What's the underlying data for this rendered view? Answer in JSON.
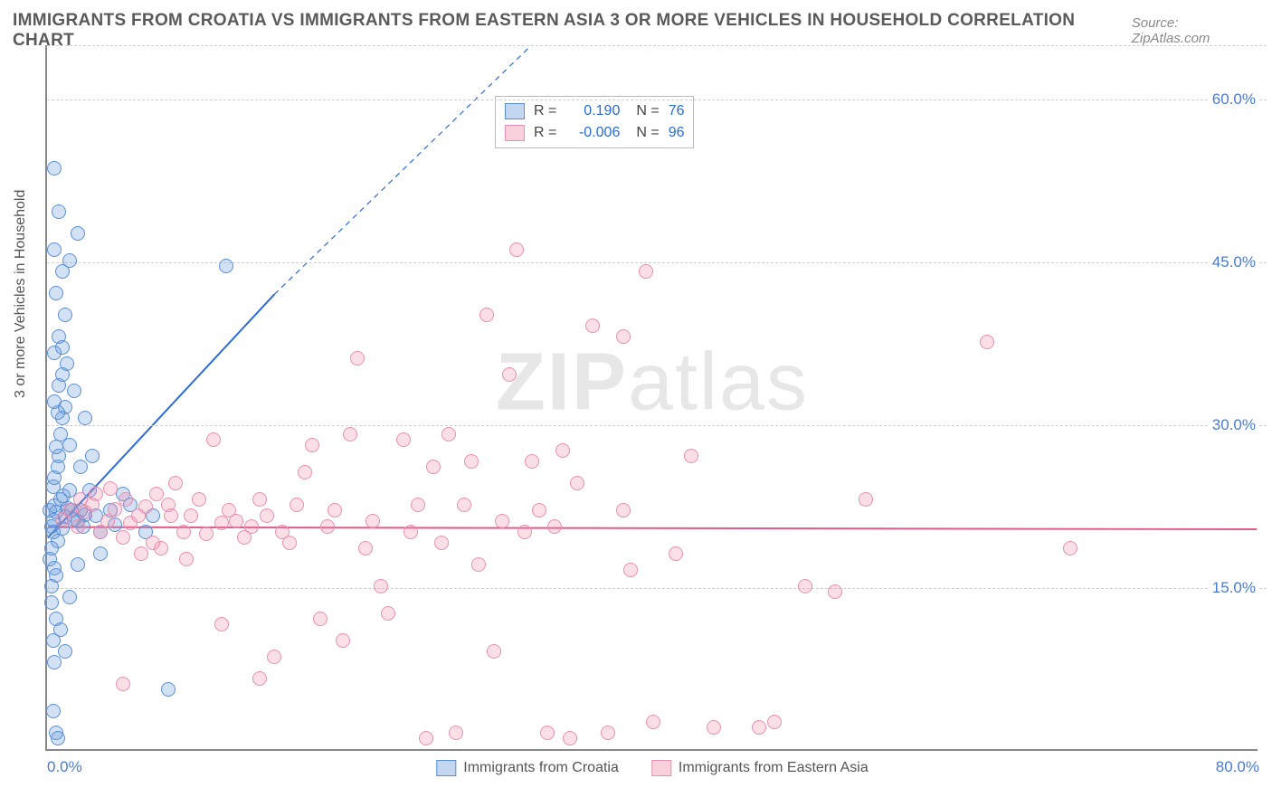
{
  "title": "IMMIGRANTS FROM CROATIA VS IMMIGRANTS FROM EASTERN ASIA 3 OR MORE VEHICLES IN HOUSEHOLD CORRELATION CHART",
  "source": "Source: ZipAtlas.com",
  "watermark_bold": "ZIP",
  "watermark_light": "atlas",
  "y_axis_title": "3 or more Vehicles in Household",
  "chart": {
    "type": "scatter",
    "xlim": [
      0,
      80
    ],
    "ylim": [
      0,
      65
    ],
    "xticks": [
      {
        "value": 0,
        "label": "0.0%"
      },
      {
        "value": 80,
        "label": "80.0%"
      }
    ],
    "yticks": [
      {
        "value": 15,
        "label": "15.0%"
      },
      {
        "value": 30,
        "label": "30.0%"
      },
      {
        "value": 45,
        "label": "45.0%"
      },
      {
        "value": 60,
        "label": "60.0%"
      }
    ],
    "grid_color": "#d8d8d8",
    "background_color": "#ffffff",
    "axis_color": "#888888",
    "marker_size": 16,
    "series": [
      {
        "name": "Immigrants from Croatia",
        "color_fill": "rgba(106,156,220,0.30)",
        "color_stroke": "#5a8fd6",
        "class": "blue",
        "R": "0.190",
        "N": "76",
        "trend": {
          "x1": 0,
          "y1": 19.5,
          "x2": 15,
          "y2": 42,
          "extend_dash_to_x": 32,
          "extend_dash_to_y": 65,
          "color": "#2a6bd8"
        },
        "points": [
          [
            0.3,
            20.5
          ],
          [
            0.4,
            21.1
          ],
          [
            0.2,
            22.0
          ],
          [
            0.5,
            22.4
          ],
          [
            0.6,
            21.8
          ],
          [
            0.4,
            20.0
          ],
          [
            0.7,
            19.2
          ],
          [
            0.3,
            18.5
          ],
          [
            0.2,
            17.5
          ],
          [
            0.5,
            16.7
          ],
          [
            0.6,
            16.0
          ],
          [
            0.3,
            15.0
          ],
          [
            0.9,
            23.0
          ],
          [
            1.1,
            23.3
          ],
          [
            1.4,
            22.2
          ],
          [
            1.2,
            21.4
          ],
          [
            1.0,
            20.3
          ],
          [
            1.5,
            23.8
          ],
          [
            1.6,
            22.0
          ],
          [
            1.8,
            21.2
          ],
          [
            2.0,
            21.0
          ],
          [
            2.2,
            22.0
          ],
          [
            2.5,
            21.6
          ],
          [
            2.4,
            20.5
          ],
          [
            0.4,
            24.2
          ],
          [
            0.5,
            25.0
          ],
          [
            0.7,
            26.0
          ],
          [
            0.8,
            27.0
          ],
          [
            0.6,
            27.8
          ],
          [
            0.9,
            29.0
          ],
          [
            1.0,
            30.5
          ],
          [
            1.2,
            31.5
          ],
          [
            0.5,
            32.0
          ],
          [
            0.8,
            33.5
          ],
          [
            1.0,
            34.5
          ],
          [
            1.3,
            35.5
          ],
          [
            0.5,
            36.5
          ],
          [
            0.8,
            38.0
          ],
          [
            1.2,
            40.0
          ],
          [
            0.6,
            42.0
          ],
          [
            1.0,
            44.0
          ],
          [
            1.5,
            45.0
          ],
          [
            0.5,
            46.0
          ],
          [
            2.0,
            47.5
          ],
          [
            0.8,
            49.5
          ],
          [
            0.5,
            53.5
          ],
          [
            0.3,
            13.5
          ],
          [
            0.6,
            12.0
          ],
          [
            0.4,
            10.0
          ],
          [
            0.5,
            8.0
          ],
          [
            0.4,
            3.5
          ],
          [
            0.6,
            1.5
          ],
          [
            0.7,
            1.0
          ],
          [
            1.2,
            9.0
          ],
          [
            3.5,
            18.0
          ],
          [
            4.2,
            22.0
          ],
          [
            5.0,
            23.5
          ],
          [
            6.5,
            20.0
          ],
          [
            7.0,
            21.5
          ],
          [
            8.0,
            5.5
          ],
          [
            11.8,
            44.5
          ],
          [
            3.0,
            27.0
          ],
          [
            2.5,
            30.5
          ],
          [
            1.8,
            33.0
          ],
          [
            2.0,
            17.0
          ],
          [
            1.5,
            14.0
          ],
          [
            0.9,
            11.0
          ],
          [
            3.2,
            21.5
          ],
          [
            4.5,
            20.7
          ],
          [
            5.5,
            22.5
          ],
          [
            2.8,
            23.8
          ],
          [
            3.5,
            20.0
          ],
          [
            2.2,
            26.0
          ],
          [
            1.5,
            28.0
          ],
          [
            0.7,
            31.0
          ],
          [
            1.0,
            37.0
          ]
        ]
      },
      {
        "name": "Immigrants from Eastern Asia",
        "color_fill": "rgba(240,140,170,0.28)",
        "color_stroke": "#e78fb0",
        "class": "pink",
        "R": "-0.006",
        "N": "96",
        "trend": {
          "x1": 0,
          "y1": 20.5,
          "x2": 80,
          "y2": 20.3,
          "color": "#e05a8c"
        },
        "points": [
          [
            1.0,
            21.2
          ],
          [
            1.5,
            22.0
          ],
          [
            2.0,
            20.5
          ],
          [
            2.5,
            21.8
          ],
          [
            3.0,
            22.5
          ],
          [
            3.5,
            20.0
          ],
          [
            4.0,
            21.0
          ],
          [
            4.5,
            22.1
          ],
          [
            5.0,
            19.5
          ],
          [
            5.5,
            20.8
          ],
          [
            6.0,
            21.5
          ],
          [
            6.5,
            22.3
          ],
          [
            7.0,
            19.0
          ],
          [
            7.5,
            18.5
          ],
          [
            8.0,
            22.5
          ],
          [
            8.5,
            24.5
          ],
          [
            9.0,
            20.0
          ],
          [
            9.5,
            21.5
          ],
          [
            10.0,
            23.0
          ],
          [
            10.5,
            19.8
          ],
          [
            11.0,
            28.5
          ],
          [
            11.5,
            20.8
          ],
          [
            12.0,
            22.0
          ],
          [
            12.5,
            21.0
          ],
          [
            13.0,
            19.5
          ],
          [
            13.5,
            20.5
          ],
          [
            14.0,
            23.0
          ],
          [
            14.5,
            21.5
          ],
          [
            15.0,
            8.5
          ],
          [
            15.5,
            20.0
          ],
          [
            16.0,
            19.0
          ],
          [
            16.5,
            22.5
          ],
          [
            17.0,
            25.5
          ],
          [
            17.5,
            28.0
          ],
          [
            18.0,
            12.0
          ],
          [
            18.5,
            20.5
          ],
          [
            19.0,
            22.0
          ],
          [
            19.5,
            10.0
          ],
          [
            20.0,
            29.0
          ],
          [
            20.5,
            36.0
          ],
          [
            21.0,
            18.5
          ],
          [
            21.5,
            21.0
          ],
          [
            22.0,
            15.0
          ],
          [
            22.5,
            12.5
          ],
          [
            14.0,
            6.5
          ],
          [
            23.5,
            28.5
          ],
          [
            24.0,
            20.0
          ],
          [
            24.5,
            22.5
          ],
          [
            25.0,
            1.0
          ],
          [
            25.5,
            26.0
          ],
          [
            26.0,
            19.0
          ],
          [
            26.5,
            29.0
          ],
          [
            27.0,
            1.5
          ],
          [
            27.5,
            22.5
          ],
          [
            28.0,
            26.5
          ],
          [
            28.5,
            17.0
          ],
          [
            29.0,
            40.0
          ],
          [
            29.5,
            9.0
          ],
          [
            30.0,
            21.0
          ],
          [
            30.5,
            34.5
          ],
          [
            31.0,
            46.0
          ],
          [
            31.5,
            20.0
          ],
          [
            32.0,
            26.5
          ],
          [
            32.5,
            22.0
          ],
          [
            33.0,
            1.5
          ],
          [
            33.5,
            20.5
          ],
          [
            34.0,
            27.5
          ],
          [
            34.5,
            1.0
          ],
          [
            35.0,
            24.5
          ],
          [
            37.0,
            1.5
          ],
          [
            38.0,
            22.0
          ],
          [
            38.5,
            16.5
          ],
          [
            11.5,
            11.5
          ],
          [
            39.5,
            44.0
          ],
          [
            40.0,
            2.5
          ],
          [
            41.5,
            18.0
          ],
          [
            42.5,
            27.0
          ],
          [
            44.0,
            2.0
          ],
          [
            47.0,
            2.0
          ],
          [
            48.0,
            2.5
          ],
          [
            50.0,
            15.0
          ],
          [
            52.0,
            14.5
          ],
          [
            54.0,
            23.0
          ],
          [
            62.0,
            37.5
          ],
          [
            67.5,
            18.5
          ],
          [
            2.2,
            23.0
          ],
          [
            3.2,
            23.5
          ],
          [
            4.2,
            24.0
          ],
          [
            5.2,
            23.0
          ],
          [
            6.2,
            18.0
          ],
          [
            7.2,
            23.5
          ],
          [
            8.2,
            21.5
          ],
          [
            36.0,
            39.0
          ],
          [
            38.0,
            38.0
          ],
          [
            9.2,
            17.5
          ],
          [
            5.0,
            6.0
          ]
        ]
      }
    ]
  },
  "legend_bottom": [
    {
      "swatch": "blue",
      "label": "Immigrants from Croatia"
    },
    {
      "swatch": "pink",
      "label": "Immigrants from Eastern Asia"
    }
  ]
}
